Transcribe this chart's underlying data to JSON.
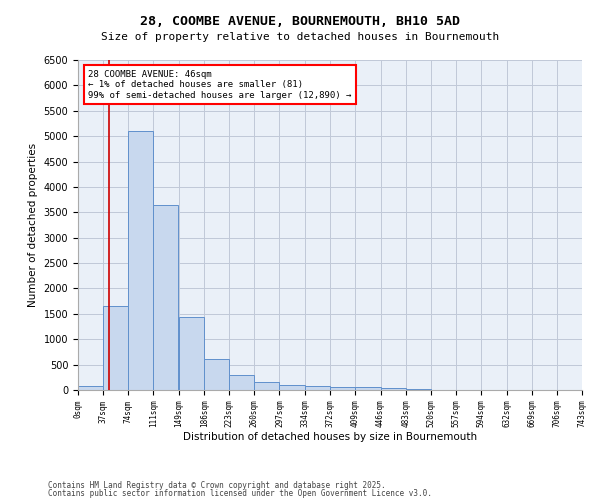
{
  "title": "28, COOMBE AVENUE, BOURNEMOUTH, BH10 5AD",
  "subtitle": "Size of property relative to detached houses in Bournemouth",
  "xlabel": "Distribution of detached houses by size in Bournemouth",
  "ylabel": "Number of detached properties",
  "footer1": "Contains HM Land Registry data © Crown copyright and database right 2025.",
  "footer2": "Contains public sector information licensed under the Open Government Licence v3.0.",
  "bar_color": "#c8d8ee",
  "bar_edge_color": "#6090cc",
  "grid_color": "#c0c8d8",
  "bg_color": "#eaf0f8",
  "property_line_color": "#cc0000",
  "bin_starts": [
    0,
    37,
    74,
    111,
    149,
    186,
    223,
    260,
    297,
    334,
    372,
    409,
    446,
    483,
    520,
    557,
    594,
    632,
    669,
    706
  ],
  "bin_width": 37,
  "counts": [
    80,
    1650,
    5100,
    3650,
    1430,
    620,
    305,
    155,
    95,
    70,
    55,
    50,
    40,
    15,
    8,
    5,
    3,
    2,
    1,
    1
  ],
  "ylim": [
    0,
    6500
  ],
  "property_value": 46,
  "annotation_text": "28 COOMBE AVENUE: 46sqm\n← 1% of detached houses are smaller (81)\n99% of semi-detached houses are larger (12,890) →",
  "tick_labels": [
    "0sqm",
    "37sqm",
    "74sqm",
    "111sqm",
    "149sqm",
    "186sqm",
    "223sqm",
    "260sqm",
    "297sqm",
    "334sqm",
    "372sqm",
    "409sqm",
    "446sqm",
    "483sqm",
    "520sqm",
    "557sqm",
    "594sqm",
    "632sqm",
    "669sqm",
    "706sqm",
    "743sqm"
  ],
  "yticks": [
    0,
    500,
    1000,
    1500,
    2000,
    2500,
    3000,
    3500,
    4000,
    4500,
    5000,
    5500,
    6000,
    6500
  ]
}
